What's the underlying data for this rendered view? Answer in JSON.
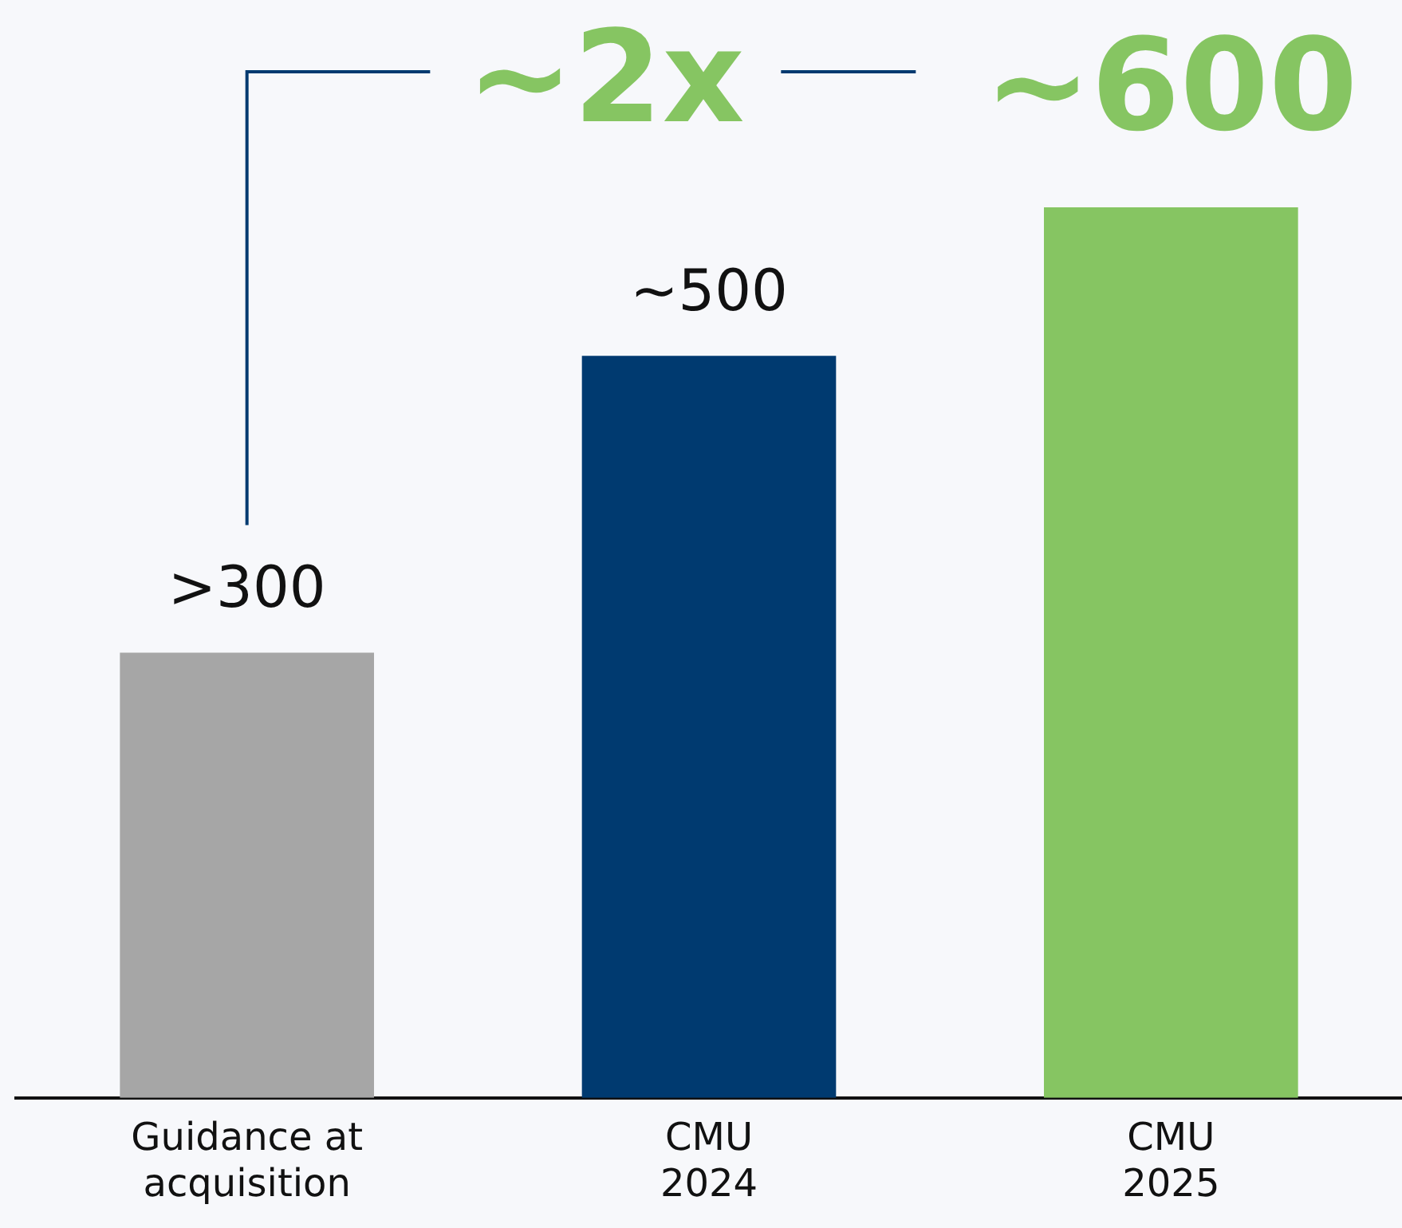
{
  "chart_data": {
    "type": "bar",
    "categories": [
      "Guidance at acquisition",
      "CMU 2024",
      "CMU 2025"
    ],
    "values": [
      300,
      500,
      600
    ],
    "value_labels": [
      ">300",
      "~500",
      "~600"
    ],
    "colors": [
      "#a6a6a6",
      "#003a70",
      "#86c562"
    ],
    "annotations": [
      "~2x"
    ],
    "grid": false,
    "legend": false
  }
}
